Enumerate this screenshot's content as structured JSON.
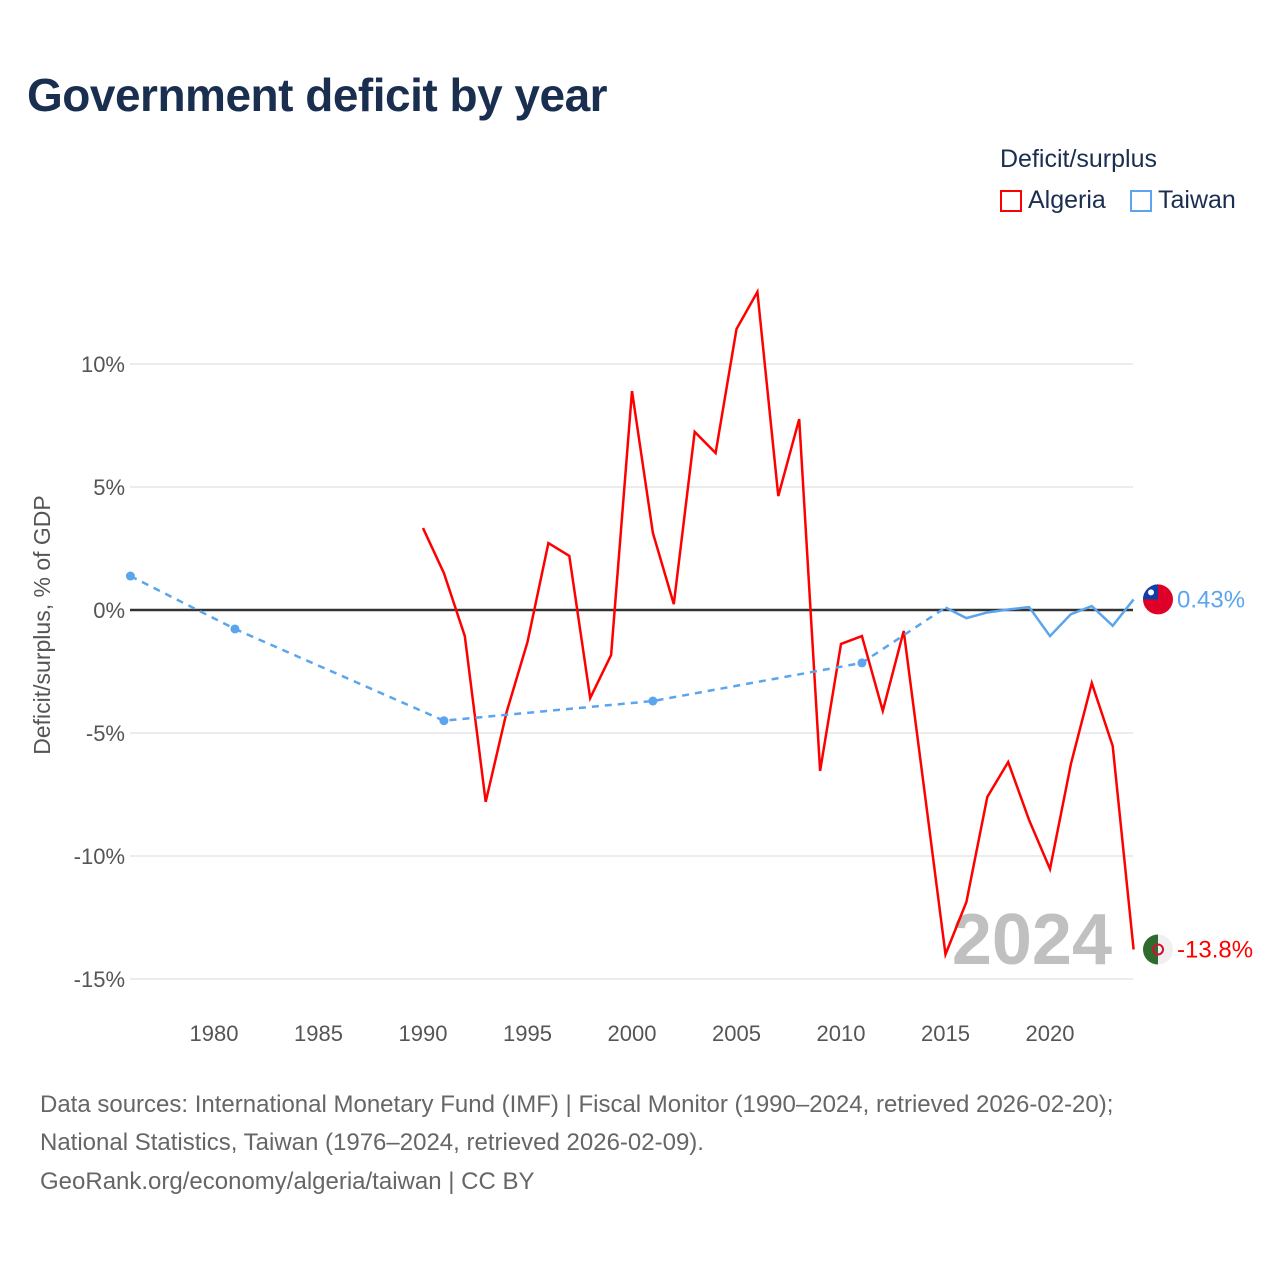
{
  "title": "Government deficit by year",
  "legend": {
    "title": "Deficit/surplus",
    "items": [
      {
        "label": "Algeria",
        "color": "#ff0000"
      },
      {
        "label": "Taiwan",
        "color": "#5aa5ee"
      }
    ]
  },
  "chart_data": {
    "type": "line",
    "title": "Government deficit by year",
    "ylabel": "Deficit/surplus, % of GDP",
    "xlabel": "",
    "xlim": [
      1976,
      2024
    ],
    "ylim": [
      -15,
      10
    ],
    "x_ticks": [
      1980,
      1985,
      1990,
      1995,
      2000,
      2005,
      2010,
      2015,
      2020
    ],
    "y_ticks": [
      {
        "v": 10,
        "label": "10%"
      },
      {
        "v": 5,
        "label": "5%"
      },
      {
        "v": 0,
        "label": "0%"
      },
      {
        "v": -5,
        "label": "-5%"
      },
      {
        "v": -10,
        "label": "-10%"
      },
      {
        "v": -15,
        "label": "-15%"
      }
    ],
    "year_watermark": "2024",
    "series": [
      {
        "name": "Algeria",
        "color": "#ff0000",
        "end_label": "-13.8%",
        "x": [
          1990,
          1991,
          1992,
          1993,
          1994,
          1995,
          1996,
          1997,
          1998,
          1999,
          2000,
          2001,
          2002,
          2003,
          2004,
          2005,
          2006,
          2007,
          2008,
          2009,
          2010,
          2011,
          2012,
          2013,
          2014,
          2015,
          2016,
          2017,
          2018,
          2019,
          2020,
          2021,
          2022,
          2023,
          2024
        ],
        "values": [
          3.33,
          1.5,
          -1.06,
          -7.8,
          -4.15,
          -1.3,
          2.72,
          2.2,
          -3.58,
          -1.83,
          8.9,
          3.13,
          0.24,
          7.24,
          6.38,
          11.42,
          12.93,
          4.63,
          7.76,
          -6.54,
          -1.38,
          -1.06,
          -4.1,
          -0.85,
          -7.4,
          -14.0,
          -11.87,
          -7.6,
          -6.18,
          -8.54,
          -10.53,
          -6.26,
          -2.97,
          -5.53,
          -13.8
        ]
      },
      {
        "name": "Taiwan",
        "color": "#5aa5ee",
        "end_label": "0.43%",
        "x": [
          1976,
          1981,
          1991,
          2001,
          2011,
          2015,
          2016,
          2017,
          2018,
          2019,
          2020,
          2021,
          2022,
          2023,
          2024
        ],
        "values": [
          1.38,
          -0.77,
          -4.5,
          -3.7,
          -2.15,
          0.1,
          -0.33,
          -0.1,
          0.02,
          0.12,
          -1.06,
          -0.17,
          0.16,
          -0.64,
          0.43
        ]
      }
    ]
  },
  "sources": {
    "line1": "Data sources: International Monetary Fund (IMF) | Fiscal Monitor (1990–2024, retrieved 2026-02-20);",
    "line2": "National Statistics, Taiwan (1976–2024, retrieved 2026-02-09).",
    "line3": "GeoRank.org/economy/algeria/taiwan | CC BY"
  }
}
